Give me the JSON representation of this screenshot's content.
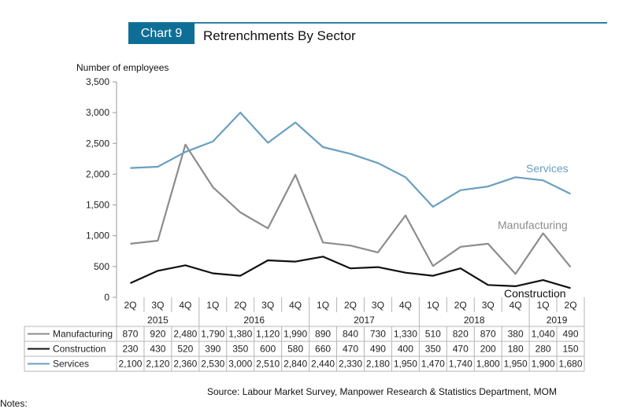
{
  "header": {
    "chart_label": "Chart 9",
    "title": "Retrenchments By Sector"
  },
  "footer": {
    "source": "Source: Labour Market Survey, Manpower Research & Statistics Department, MOM",
    "notes": "Notes:"
  },
  "colors": {
    "manufacturing": "#8c8c8c",
    "construction": "#111111",
    "services": "#6a9fc0",
    "accent": "#0f6e96"
  },
  "chart_data": {
    "type": "line",
    "title": "Retrenchments By Sector",
    "ylabel": "Number of employees",
    "ylim": [
      0,
      3500
    ],
    "yticks": [
      "0",
      "500",
      "1,000",
      "1,500",
      "2,000",
      "2,500",
      "3,000",
      "3,500"
    ],
    "grid": false,
    "categories": [
      "2Q",
      "3Q",
      "4Q",
      "1Q",
      "2Q",
      "3Q",
      "4Q",
      "1Q",
      "2Q",
      "3Q",
      "4Q",
      "1Q",
      "2Q",
      "3Q",
      "4Q",
      "1Q",
      "2Q"
    ],
    "years": [
      {
        "label": "2015",
        "start": 0,
        "end": 2
      },
      {
        "label": "2016",
        "start": 3,
        "end": 6
      },
      {
        "label": "2017",
        "start": 7,
        "end": 10
      },
      {
        "label": "2018",
        "start": 11,
        "end": 14
      },
      {
        "label": "2019",
        "start": 15,
        "end": 16
      }
    ],
    "series": [
      {
        "name": "Manufacturing",
        "key": "manufacturing",
        "end_label": "Manufacturing",
        "values": [
          870,
          920,
          2480,
          1790,
          1380,
          1120,
          1990,
          890,
          840,
          730,
          1330,
          510,
          820,
          870,
          380,
          1040,
          490
        ],
        "display": [
          "870",
          "920",
          "2,480",
          "1,790",
          "1,380",
          "1,120",
          "1,990",
          "890",
          "840",
          "730",
          "1,330",
          "510",
          "820",
          "870",
          "380",
          "1,040",
          "490"
        ]
      },
      {
        "name": "Construction",
        "key": "construction",
        "end_label": "Construction",
        "values": [
          230,
          430,
          520,
          390,
          350,
          600,
          580,
          660,
          470,
          490,
          400,
          350,
          470,
          200,
          180,
          280,
          150
        ],
        "display": [
          "230",
          "430",
          "520",
          "390",
          "350",
          "600",
          "580",
          "660",
          "470",
          "490",
          "400",
          "350",
          "470",
          "200",
          "180",
          "280",
          "150"
        ]
      },
      {
        "name": "Services",
        "key": "services",
        "end_label": "Services",
        "values": [
          2100,
          2120,
          2360,
          2530,
          3000,
          2510,
          2840,
          2440,
          2330,
          2180,
          1950,
          1470,
          1740,
          1800,
          1950,
          1900,
          1680
        ],
        "display": [
          "2,100",
          "2,120",
          "2,360",
          "2,530",
          "3,000",
          "2,510",
          "2,840",
          "2,440",
          "2,330",
          "2,180",
          "1,950",
          "1,470",
          "1,740",
          "1,800",
          "1,950",
          "1,900",
          "1,680"
        ]
      }
    ]
  }
}
